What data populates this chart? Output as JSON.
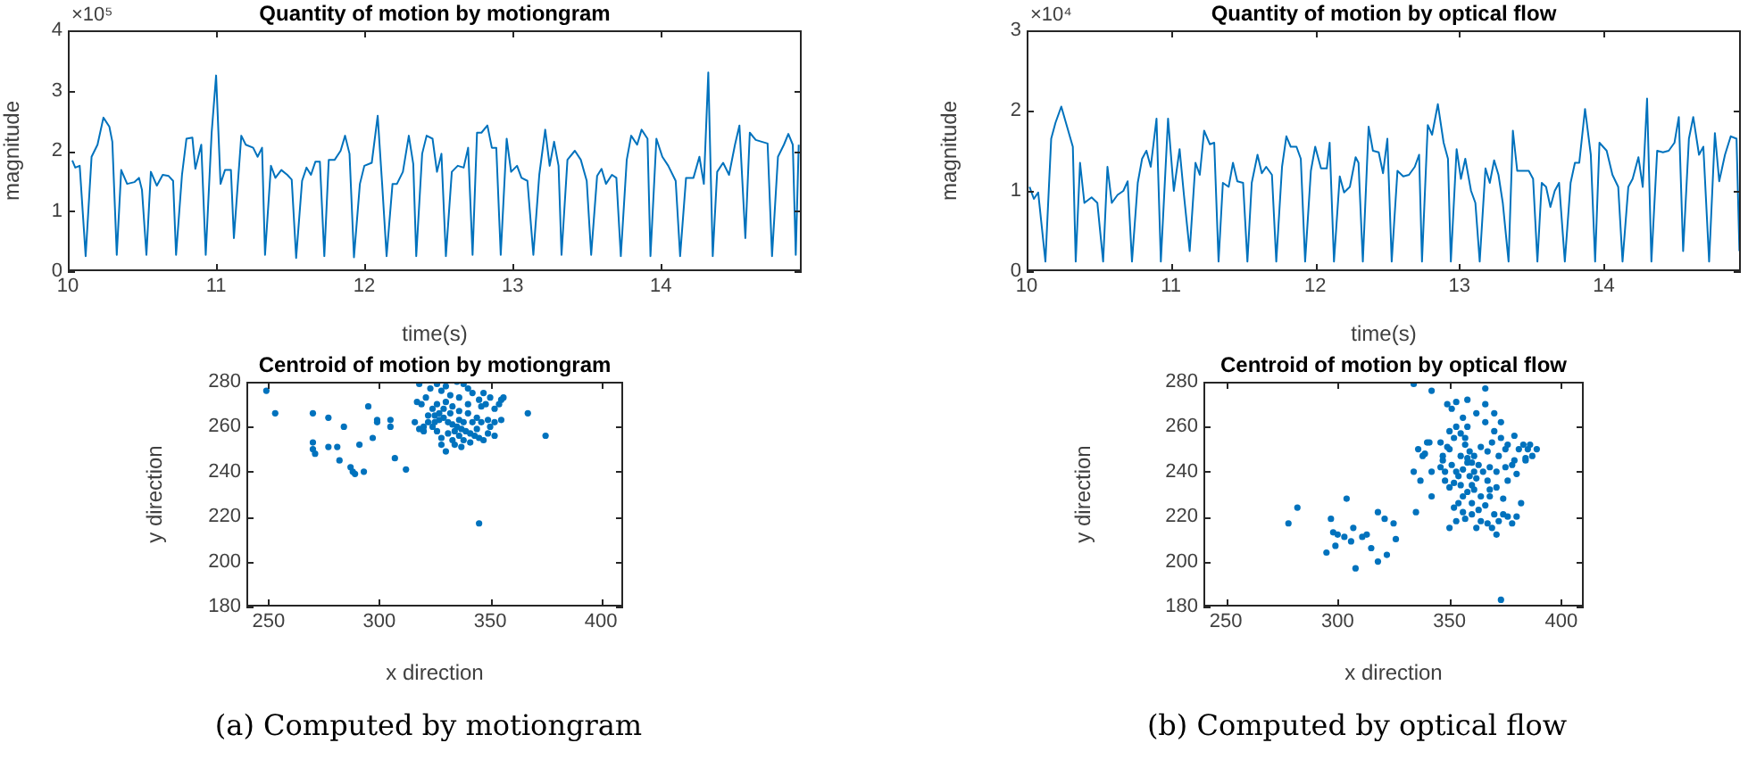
{
  "chart_data": [
    {
      "type": "line",
      "title": "Quantity of motion by motiongram",
      "xlabel": "time(s)",
      "ylabel": "magnitude",
      "annotations": [
        "×10⁵"
      ],
      "color": "#0072bd",
      "xlim": [
        10,
        14.95
      ],
      "xticks": [
        10,
        11,
        12,
        13,
        14
      ],
      "ylim": [
        0,
        4
      ],
      "yticks": [
        0,
        1,
        2,
        3,
        4
      ],
      "x": [
        10.03,
        10.05,
        10.08,
        10.12,
        10.16,
        10.2,
        10.24,
        10.28,
        10.3,
        10.33,
        10.36,
        10.4,
        10.45,
        10.48,
        10.5,
        10.53,
        10.56,
        10.6,
        10.64,
        10.68,
        10.71,
        10.73,
        10.77,
        10.8,
        10.84,
        10.86,
        10.9,
        10.93,
        10.97,
        11.0,
        11.03,
        11.06,
        11.1,
        11.12,
        11.17,
        11.2,
        11.25,
        11.28,
        11.31,
        11.33,
        11.37,
        11.4,
        11.44,
        11.48,
        11.51,
        11.54,
        11.58,
        11.61,
        11.64,
        11.67,
        11.7,
        11.73,
        11.76,
        11.8,
        11.84,
        11.87,
        11.9,
        11.93,
        11.97,
        12.0,
        12.05,
        12.09,
        12.12,
        12.15,
        12.19,
        12.22,
        12.26,
        12.3,
        12.33,
        12.35,
        12.39,
        12.42,
        12.46,
        12.49,
        12.52,
        12.55,
        12.59,
        12.63,
        12.67,
        12.7,
        12.73,
        12.76,
        12.79,
        12.83,
        12.86,
        12.89,
        12.92,
        12.96,
        12.99,
        13.03,
        13.06,
        13.1,
        13.14,
        13.18,
        13.22,
        13.25,
        13.28,
        13.31,
        13.33,
        13.37,
        13.42,
        13.46,
        13.5,
        13.53,
        13.57,
        13.6,
        13.63,
        13.67,
        13.7,
        13.73,
        13.77,
        13.8,
        13.84,
        13.87,
        13.91,
        13.93,
        13.97,
        14.01,
        14.05,
        14.1,
        14.13,
        14.17,
        14.22,
        14.26,
        14.29,
        14.32,
        14.35,
        14.38,
        14.42,
        14.46,
        14.5,
        14.53,
        14.57,
        14.6,
        14.64,
        14.68,
        14.72,
        14.75,
        14.79,
        14.83,
        14.86,
        14.89,
        14.91,
        14.93
      ],
      "values": [
        1.84,
        1.72,
        1.75,
        0.25,
        1.9,
        2.1,
        2.55,
        2.4,
        2.15,
        0.27,
        1.68,
        1.45,
        1.48,
        1.55,
        1.35,
        0.27,
        1.65,
        1.42,
        1.6,
        1.58,
        1.5,
        0.27,
        1.6,
        2.2,
        2.22,
        1.7,
        2.1,
        0.27,
        2.3,
        3.25,
        1.45,
        1.68,
        1.68,
        0.55,
        2.25,
        2.1,
        2.05,
        1.9,
        2.05,
        0.27,
        1.75,
        1.55,
        1.68,
        1.6,
        1.52,
        0.22,
        1.5,
        1.72,
        1.6,
        1.82,
        1.82,
        0.25,
        1.85,
        1.85,
        2.0,
        2.25,
        1.95,
        0.23,
        1.45,
        1.75,
        1.8,
        2.58,
        1.45,
        0.25,
        1.45,
        1.45,
        1.65,
        2.25,
        1.78,
        0.25,
        1.95,
        2.25,
        2.2,
        1.65,
        1.95,
        0.25,
        1.65,
        1.75,
        1.72,
        2.05,
        0.27,
        2.3,
        2.3,
        2.42,
        2.05,
        2.05,
        0.27,
        2.2,
        1.65,
        1.75,
        1.55,
        1.5,
        0.27,
        1.6,
        2.35,
        1.75,
        2.15,
        1.75,
        0.27,
        1.85,
        2.0,
        1.85,
        1.5,
        0.27,
        1.58,
        1.7,
        1.45,
        1.6,
        1.55,
        0.25,
        1.85,
        2.25,
        2.1,
        2.35,
        2.2,
        0.25,
        2.2,
        1.9,
        1.75,
        1.5,
        0.25,
        1.55,
        1.55,
        1.9,
        1.45,
        3.3,
        0.25,
        1.65,
        1.8,
        1.6,
        2.1,
        2.42,
        0.55,
        2.3,
        2.18,
        2.15,
        2.12,
        0.25,
        1.9,
        2.1,
        2.28,
        2.1,
        0.27,
        2.1
      ]
    },
    {
      "type": "line",
      "title": "Quantity of motion by optical flow",
      "xlabel": "time(s)",
      "ylabel": "magnitude",
      "annotations": [
        "×10⁴"
      ],
      "color": "#0072bd",
      "xlim": [
        10,
        14.95
      ],
      "xticks": [
        10,
        11,
        12,
        13,
        14
      ],
      "ylim": [
        0,
        3
      ],
      "yticks": [
        0,
        1,
        2,
        3
      ],
      "x": [
        10.02,
        10.05,
        10.08,
        10.13,
        10.17,
        10.2,
        10.24,
        10.28,
        10.32,
        10.34,
        10.37,
        10.4,
        10.45,
        10.49,
        10.53,
        10.56,
        10.59,
        10.63,
        10.67,
        10.7,
        10.73,
        10.77,
        10.8,
        10.83,
        10.86,
        10.9,
        10.93,
        10.98,
        11.02,
        11.06,
        11.09,
        11.13,
        11.17,
        11.2,
        11.23,
        11.27,
        11.3,
        11.33,
        11.36,
        11.4,
        11.43,
        11.46,
        11.5,
        11.53,
        11.56,
        11.6,
        11.63,
        11.66,
        11.7,
        11.73,
        11.77,
        11.8,
        11.83,
        11.87,
        11.9,
        11.93,
        11.97,
        12.0,
        12.04,
        12.08,
        12.1,
        12.13,
        12.17,
        12.2,
        12.24,
        12.28,
        12.3,
        12.33,
        12.37,
        12.4,
        12.44,
        12.47,
        12.5,
        12.53,
        12.57,
        12.61,
        12.65,
        12.69,
        12.72,
        12.74,
        12.78,
        12.81,
        12.85,
        12.89,
        12.92,
        12.94,
        12.98,
        13.01,
        13.04,
        13.08,
        13.11,
        13.14,
        13.18,
        13.21,
        13.24,
        13.27,
        13.3,
        13.34,
        13.37,
        13.4,
        13.44,
        13.48,
        13.51,
        13.54,
        13.57,
        13.6,
        13.63,
        13.66,
        13.69,
        13.73,
        13.77,
        13.8,
        13.83,
        13.87,
        13.91,
        13.94,
        13.97,
        14.02,
        14.06,
        14.1,
        14.13,
        14.17,
        14.2,
        14.24,
        14.27,
        14.3,
        14.33,
        14.37,
        14.41,
        14.45,
        14.49,
        14.52,
        14.55,
        14.59,
        14.62,
        14.66,
        14.69,
        14.73,
        14.77,
        14.8,
        14.84,
        14.88,
        14.92,
        14.94
      ],
      "values": [
        1.05,
        0.9,
        0.98,
        0.12,
        1.65,
        1.85,
        2.05,
        1.8,
        1.55,
        0.12,
        1.35,
        0.85,
        0.92,
        0.85,
        0.12,
        1.3,
        0.85,
        0.95,
        1.0,
        1.12,
        0.12,
        1.1,
        1.4,
        1.5,
        1.3,
        1.9,
        0.12,
        1.9,
        1.0,
        1.52,
        0.95,
        0.25,
        1.35,
        1.2,
        1.75,
        1.58,
        1.6,
        0.12,
        1.1,
        1.05,
        1.35,
        1.12,
        1.1,
        0.12,
        1.1,
        1.45,
        1.22,
        1.3,
        1.2,
        0.12,
        1.3,
        1.68,
        1.55,
        1.55,
        1.4,
        0.12,
        1.25,
        1.55,
        1.28,
        1.28,
        1.6,
        0.12,
        1.18,
        0.98,
        1.05,
        1.42,
        1.35,
        0.12,
        1.8,
        1.5,
        1.48,
        1.22,
        1.65,
        0.12,
        1.25,
        1.18,
        1.2,
        1.3,
        1.45,
        0.12,
        1.82,
        1.7,
        2.08,
        1.6,
        1.4,
        0.12,
        1.52,
        1.15,
        1.4,
        1.0,
        0.85,
        0.12,
        1.28,
        1.1,
        1.38,
        1.2,
        0.85,
        0.12,
        1.75,
        1.25,
        1.25,
        1.25,
        1.15,
        0.12,
        1.1,
        1.05,
        0.8,
        1.0,
        1.1,
        0.12,
        1.1,
        1.35,
        1.35,
        2.02,
        1.45,
        0.12,
        1.6,
        1.5,
        1.2,
        1.05,
        0.12,
        1.05,
        1.15,
        1.42,
        1.05,
        2.15,
        0.12,
        1.5,
        1.48,
        1.5,
        1.6,
        1.92,
        0.25,
        1.65,
        1.92,
        1.45,
        1.55,
        0.12,
        1.72,
        1.12,
        1.45,
        1.68,
        1.65,
        0.25
      ]
    },
    {
      "type": "scatter",
      "title": "Centroid of motion by motiongram",
      "xlabel": "x direction",
      "ylabel": "y direction",
      "annotations": [
        "(a) Computed by motiongram"
      ],
      "color": "#0072bd",
      "marker": "circle",
      "xlim": [
        240,
        410
      ],
      "xticks": [
        250,
        300,
        350,
        400
      ],
      "ylim": [
        180,
        280
      ],
      "yticks": [
        180,
        200,
        220,
        240,
        260,
        280
      ],
      "x": [
        249,
        253,
        270,
        277,
        284,
        295,
        299,
        299,
        297,
        291,
        270,
        270,
        271,
        277,
        281,
        282,
        287,
        288,
        289,
        293,
        307,
        312,
        305,
        305,
        345,
        367,
        375,
        318,
        335,
        340,
        328,
        332,
        336,
        342,
        345,
        348,
        352,
        355,
        350,
        330,
        326,
        324,
        322,
        325,
        327,
        329,
        331,
        333,
        335,
        337,
        339,
        341,
        343,
        345,
        347,
        338,
        334,
        330,
        328,
        326,
        324,
        322,
        320,
        318,
        316,
        319,
        321,
        317,
        346,
        349,
        352,
        355,
        350,
        344,
        340,
        336,
        333,
        329,
        327,
        331,
        336,
        333,
        344,
        337,
        330,
        338,
        326,
        323,
        347,
        354,
        356,
        340,
        342,
        338,
        332,
        325,
        320,
        328,
        336,
        349,
        352,
        346,
        341,
        334
      ],
      "values": [
        276,
        266,
        266,
        264,
        260,
        269,
        263,
        262,
        255,
        252,
        253,
        250,
        248,
        251,
        251,
        245,
        242,
        240,
        239,
        240,
        246,
        241,
        263,
        260,
        217,
        266,
        256,
        279,
        280,
        277,
        276,
        274,
        273,
        275,
        272,
        270,
        268,
        272,
        273,
        271,
        270,
        268,
        265,
        265,
        266,
        264,
        262,
        261,
        260,
        259,
        258,
        257,
        256,
        255,
        254,
        254,
        252,
        249,
        255,
        258,
        260,
        262,
        260,
        259,
        262,
        270,
        273,
        271,
        262,
        263,
        262,
        263,
        260,
        264,
        266,
        267,
        269,
        268,
        263,
        257,
        256,
        254,
        259,
        251,
        278,
        279,
        279,
        277,
        275,
        270,
        273,
        270,
        262,
        262,
        266,
        262,
        258,
        252,
        263,
        257,
        256,
        269,
        253,
        258
      ]
    },
    {
      "type": "scatter",
      "title": "Centroid of motion by optical flow",
      "xlabel": "x direction",
      "ylabel": "y direction",
      "annotations": [
        "(b) Computed by optical flow"
      ],
      "color": "#0072bd",
      "marker": "circle",
      "xlim": [
        240,
        410
      ],
      "xticks": [
        250,
        300,
        350,
        400
      ],
      "ylim": [
        180,
        280
      ],
      "yticks": [
        180,
        200,
        220,
        240,
        260,
        280
      ],
      "x": [
        278,
        282,
        297,
        295,
        298,
        300,
        299,
        304,
        303,
        306,
        307,
        308,
        311,
        313,
        315,
        318,
        318,
        321,
        322,
        325,
        326,
        335,
        337,
        339,
        341,
        342,
        334,
        342,
        342,
        366,
        373,
        371,
        349,
        351,
        353,
        356,
        358,
        362,
        366,
        370,
        373,
        376,
        379,
        383,
        385,
        387,
        389,
        384,
        380,
        378,
        375,
        372,
        369,
        367,
        364,
        361,
        358,
        356,
        354,
        352,
        350,
        348,
        346,
        347,
        349,
        352,
        355,
        357,
        359,
        360,
        361,
        362,
        360,
        358,
        356,
        354,
        352,
        350,
        353,
        357,
        360,
        363,
        366,
        368,
        368,
        370,
        372,
        374,
        376,
        378,
        380,
        382,
        369,
        367,
        364,
        362,
        355,
        351,
        348,
        346,
        350,
        353,
        357,
        359,
        361,
        355,
        353,
        358,
        363,
        365,
        367,
        371,
        374,
        376,
        379,
        381,
        386,
        384,
        373,
        370,
        366,
        358,
        350,
        347,
        360,
        356,
        364,
        368,
        371,
        375,
        340,
        338,
        334,
        336
      ],
      "values": [
        217,
        224,
        219,
        204,
        213,
        212,
        207,
        228,
        211,
        209,
        215,
        197,
        211,
        212,
        206,
        222,
        200,
        219,
        203,
        217,
        210,
        222,
        236,
        248,
        253,
        240,
        279,
        276,
        229,
        277,
        183,
        212,
        270,
        268,
        271,
        264,
        272,
        266,
        262,
        258,
        255,
        252,
        256,
        252,
        250,
        247,
        250,
        245,
        239,
        243,
        250,
        247,
        253,
        249,
        251,
        247,
        244,
        241,
        238,
        235,
        233,
        236,
        242,
        247,
        251,
        255,
        257,
        252,
        249,
        244,
        240,
        237,
        234,
        231,
        229,
        226,
        224,
        215,
        218,
        219,
        221,
        223,
        225,
        229,
        232,
        221,
        218,
        221,
        220,
        217,
        220,
        226,
        215,
        217,
        218,
        215,
        247,
        243,
        240,
        253,
        258,
        260,
        255,
        238,
        232,
        234,
        240,
        246,
        243,
        240,
        236,
        233,
        228,
        236,
        245,
        250,
        252,
        246,
        262,
        266,
        270,
        260,
        250,
        245,
        226,
        222,
        229,
        242,
        240,
        242,
        253,
        247,
        240,
        250
      ]
    }
  ]
}
